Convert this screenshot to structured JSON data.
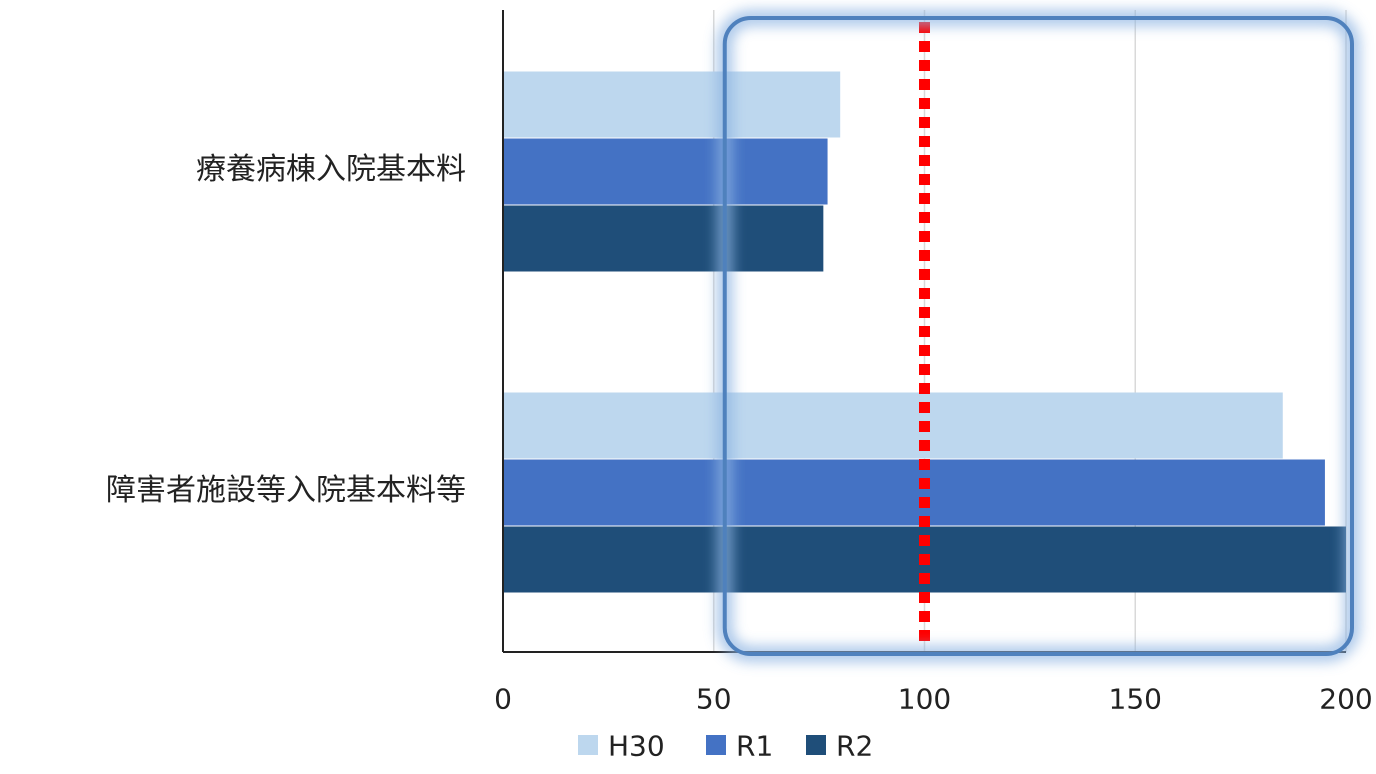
{
  "chart_data": {
    "type": "bar",
    "orientation": "horizontal",
    "categories": [
      "療養病棟入院基本料",
      "障害者施設等入院基本料等"
    ],
    "series": [
      {
        "name": "H30",
        "values": [
          80,
          185
        ],
        "color": "#BDD7EE"
      },
      {
        "name": "R1",
        "values": [
          77,
          195
        ],
        "color": "#4472C4"
      },
      {
        "name": "R2",
        "values": [
          76,
          200
        ],
        "color": "#1F4E79"
      }
    ],
    "xlim": [
      0,
      200
    ],
    "xticks": [
      "0",
      "50",
      "100",
      "150",
      "200"
    ],
    "xtick_values": [
      0,
      50,
      100,
      150,
      200
    ],
    "grid": true,
    "reference_line": {
      "value": 100,
      "color": "#FF0000",
      "style": "dotted"
    },
    "highlight_box": {
      "from": 50,
      "to": 200,
      "color": "#4F81BD"
    },
    "legend": "bottom",
    "title": "",
    "xlabel": "",
    "ylabel": ""
  }
}
